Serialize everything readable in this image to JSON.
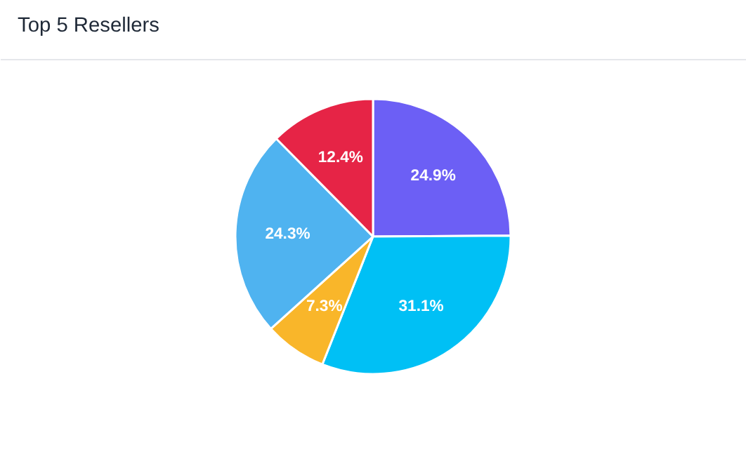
{
  "chart_data": {
    "type": "pie",
    "title": "Top 5 Resellers",
    "categories": [
      null,
      null,
      null,
      null,
      null
    ],
    "values": [
      24.9,
      31.1,
      7.3,
      24.3,
      12.4
    ],
    "colors": [
      "#6c5ff5",
      "#00c0f5",
      "#f9b62a",
      "#4fb3f0",
      "#e62446"
    ],
    "value_labels": [
      "24.9%",
      "31.1%",
      "7.3%",
      "24.3%",
      "12.4%"
    ]
  }
}
